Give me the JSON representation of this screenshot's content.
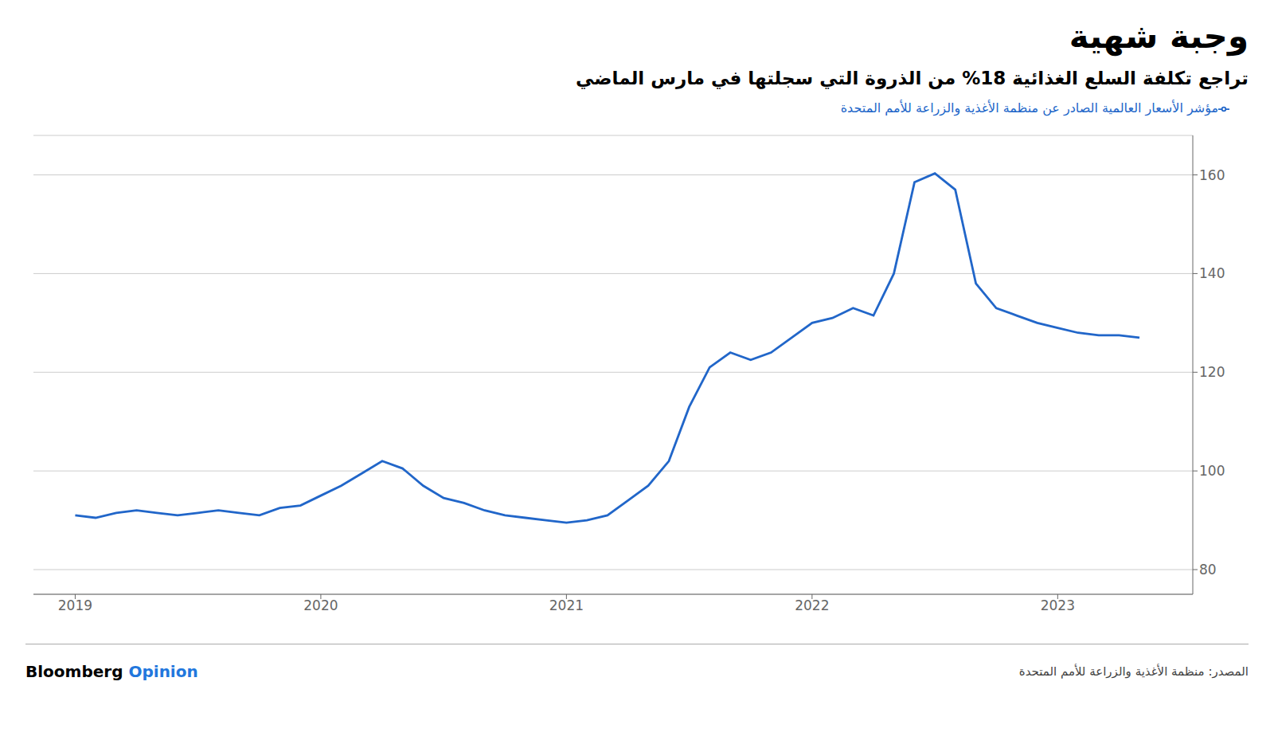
{
  "chart_data": {
    "type": "line",
    "title": "وجبة شهية",
    "subtitle": "تراجع تكلفة السلع الغذائية 18% من الذروة التي سجلتها في مارس الماضي",
    "annotations": [
      "Bloomberg",
      "Opinion",
      "المصدر: منظمة الأغذية والزراعة للأمم المتحدة"
    ],
    "x": [
      2019.0,
      2019.083,
      2019.167,
      2019.25,
      2019.333,
      2019.417,
      2019.5,
      2019.583,
      2019.667,
      2019.75,
      2019.833,
      2019.917,
      2020.0,
      2020.083,
      2020.167,
      2020.25,
      2020.333,
      2020.417,
      2020.5,
      2020.583,
      2020.667,
      2020.75,
      2020.833,
      2020.917,
      2021.0,
      2021.083,
      2021.167,
      2021.25,
      2021.333,
      2021.417,
      2021.5,
      2021.583,
      2021.667,
      2021.75,
      2021.833,
      2021.917,
      2022.0,
      2022.083,
      2022.167,
      2022.25,
      2022.333,
      2022.417,
      2022.5,
      2022.583,
      2022.667,
      2022.75,
      2022.833,
      2022.917,
      2023.0,
      2023.083,
      2023.167,
      2023.25,
      2023.333
    ],
    "series": [
      {
        "name": "مؤشر الأسعار العالمية الصادر عن منظمة الأغذية والزراعة للأمم المتحدة",
        "color": "#2166c9",
        "values": [
          91.0,
          90.5,
          91.5,
          92.0,
          91.5,
          91.0,
          91.5,
          92.0,
          91.5,
          91.0,
          92.5,
          93.0,
          95.0,
          97.0,
          99.5,
          102.0,
          100.5,
          97.0,
          94.5,
          93.5,
          92.0,
          91.0,
          90.5,
          90.0,
          89.5,
          90.0,
          91.0,
          94.0,
          97.0,
          102.0,
          113.0,
          121.0,
          124.0,
          122.5,
          124.0,
          127.0,
          130.0,
          131.0,
          133.0,
          131.5,
          140.0,
          158.5,
          160.3,
          157.0,
          138.0,
          133.0,
          131.5,
          130.0,
          129.0,
          128.0,
          127.5,
          127.5,
          127.0
        ]
      }
    ],
    "xlim": [
      2018.83,
      2023.55
    ],
    "xticks": [
      2019,
      2020,
      2021,
      2022,
      2023
    ],
    "ylim": [
      75,
      168
    ],
    "yticks": [
      80,
      100,
      120,
      140,
      160
    ],
    "grid": true
  }
}
